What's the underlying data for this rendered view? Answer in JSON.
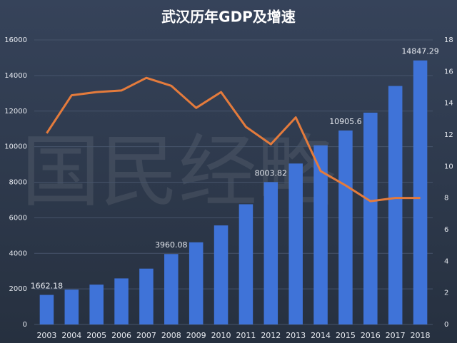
{
  "chart_data": {
    "type": "bar",
    "title": "武汉历年GDP及增速",
    "watermark": "国民经略",
    "categories": [
      "2003",
      "2004",
      "2005",
      "2006",
      "2007",
      "2008",
      "2009",
      "2010",
      "2011",
      "2012",
      "2013",
      "2014",
      "2015",
      "2016",
      "2017",
      "2018"
    ],
    "series": [
      {
        "type": "bar",
        "color": "#3f73d8",
        "values": [
          1662.18,
          1960,
          2240,
          2590,
          3140,
          3960.08,
          4620,
          5570,
          6760,
          8003.82,
          9050,
          10070,
          10905.6,
          11910,
          13410,
          14847.29
        ],
        "value_labels": [
          "1662.18",
          null,
          null,
          null,
          null,
          "3960.08",
          null,
          null,
          null,
          "8003.82",
          null,
          null,
          "10905.6",
          null,
          null,
          "14847.29"
        ]
      },
      {
        "type": "line",
        "axis": "y2",
        "color": "#e47b3c",
        "values": [
          12.1,
          14.5,
          14.7,
          14.8,
          15.6,
          15.1,
          13.7,
          14.7,
          12.5,
          11.4,
          13.1,
          9.7,
          8.8,
          7.8,
          8.0,
          8.0
        ]
      }
    ],
    "ylim": [
      0,
      16000
    ],
    "yticks": [
      0,
      2000,
      4000,
      6000,
      8000,
      10000,
      12000,
      14000,
      16000
    ],
    "y2lim": [
      0,
      18
    ],
    "y2ticks": [
      0,
      2,
      4,
      6,
      8,
      10,
      12,
      14,
      16,
      18
    ],
    "grid": true
  }
}
